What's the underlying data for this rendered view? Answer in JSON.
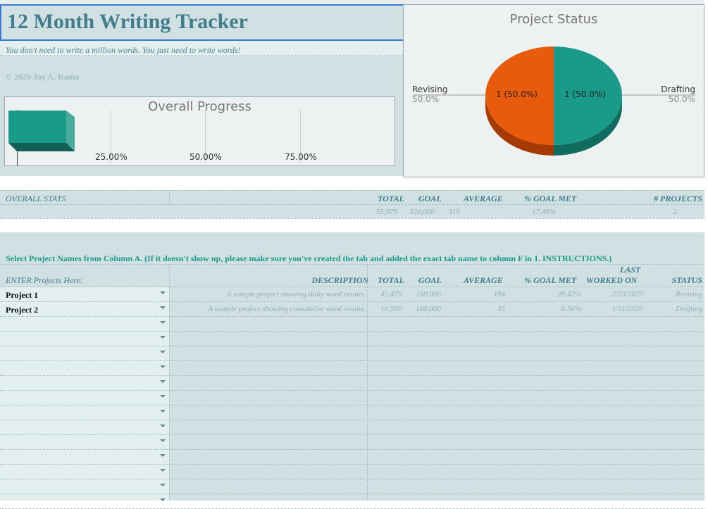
{
  "header": {
    "title": "12 Month Writing Tracker",
    "tagline": "You don't need to write a million words. You just need to write words!",
    "copyright": "© 2020 Jay A. Rama"
  },
  "progress_chart": {
    "title": "Overall Progress",
    "ticks": [
      "25.00%",
      "50.00%",
      "75.00%"
    ],
    "value_percent": 17.49,
    "bar_color": "#1a9a88"
  },
  "pie_chart": {
    "title": "Project Status",
    "slices": [
      {
        "label": "Revising",
        "percent_label": "50.0%",
        "data_label": "1 (50.0%)",
        "value": 1,
        "color": "#e85a0c"
      },
      {
        "label": "Drafting",
        "percent_label": "50.0%",
        "data_label": "1 (50.0%)",
        "value": 1,
        "color": "#1a9a88"
      }
    ]
  },
  "overall_stats": {
    "label": "OVERALL STATS",
    "headers": {
      "total": "TOTAL",
      "goal": "GOAL",
      "average": "AVERAGE",
      "goal_met": "% GOAL MET",
      "projects": "# PROJECTS"
    },
    "values": {
      "total": "55,979",
      "goal": "320,000",
      "average": "119",
      "goal_met": "17.49%",
      "projects": "2"
    }
  },
  "instructions": "Select Project Names from Column A. (If it doesn't show up, please make sure you've created the tab and added the exact tab name to column F in 1. INSTRUCTIONS.)",
  "projects": {
    "headers": {
      "name": "ENTER Projects Here:",
      "description": "DESCRIPTION",
      "total": "TOTAL",
      "goal": "GOAL",
      "average": "AVERAGE",
      "goal_met": "% GOAL MET",
      "last_1": "LAST",
      "last_2": "WORKED ON",
      "status": "STATUS"
    },
    "rows": [
      {
        "name": "Project 1",
        "description": "A sample project showing daily word counts.",
        "total": "45,479",
        "goal": "160,000",
        "average": "194",
        "goal_met": "28.42%",
        "last": "2/23/2020",
        "status": "Revising"
      },
      {
        "name": "Project 2",
        "description": "A sample project showing cumulative word counts.",
        "total": "10,500",
        "goal": "160,000",
        "average": "45",
        "goal_met": "6.56%",
        "last": "1/31/2020",
        "status": "Drafting"
      }
    ]
  }
}
